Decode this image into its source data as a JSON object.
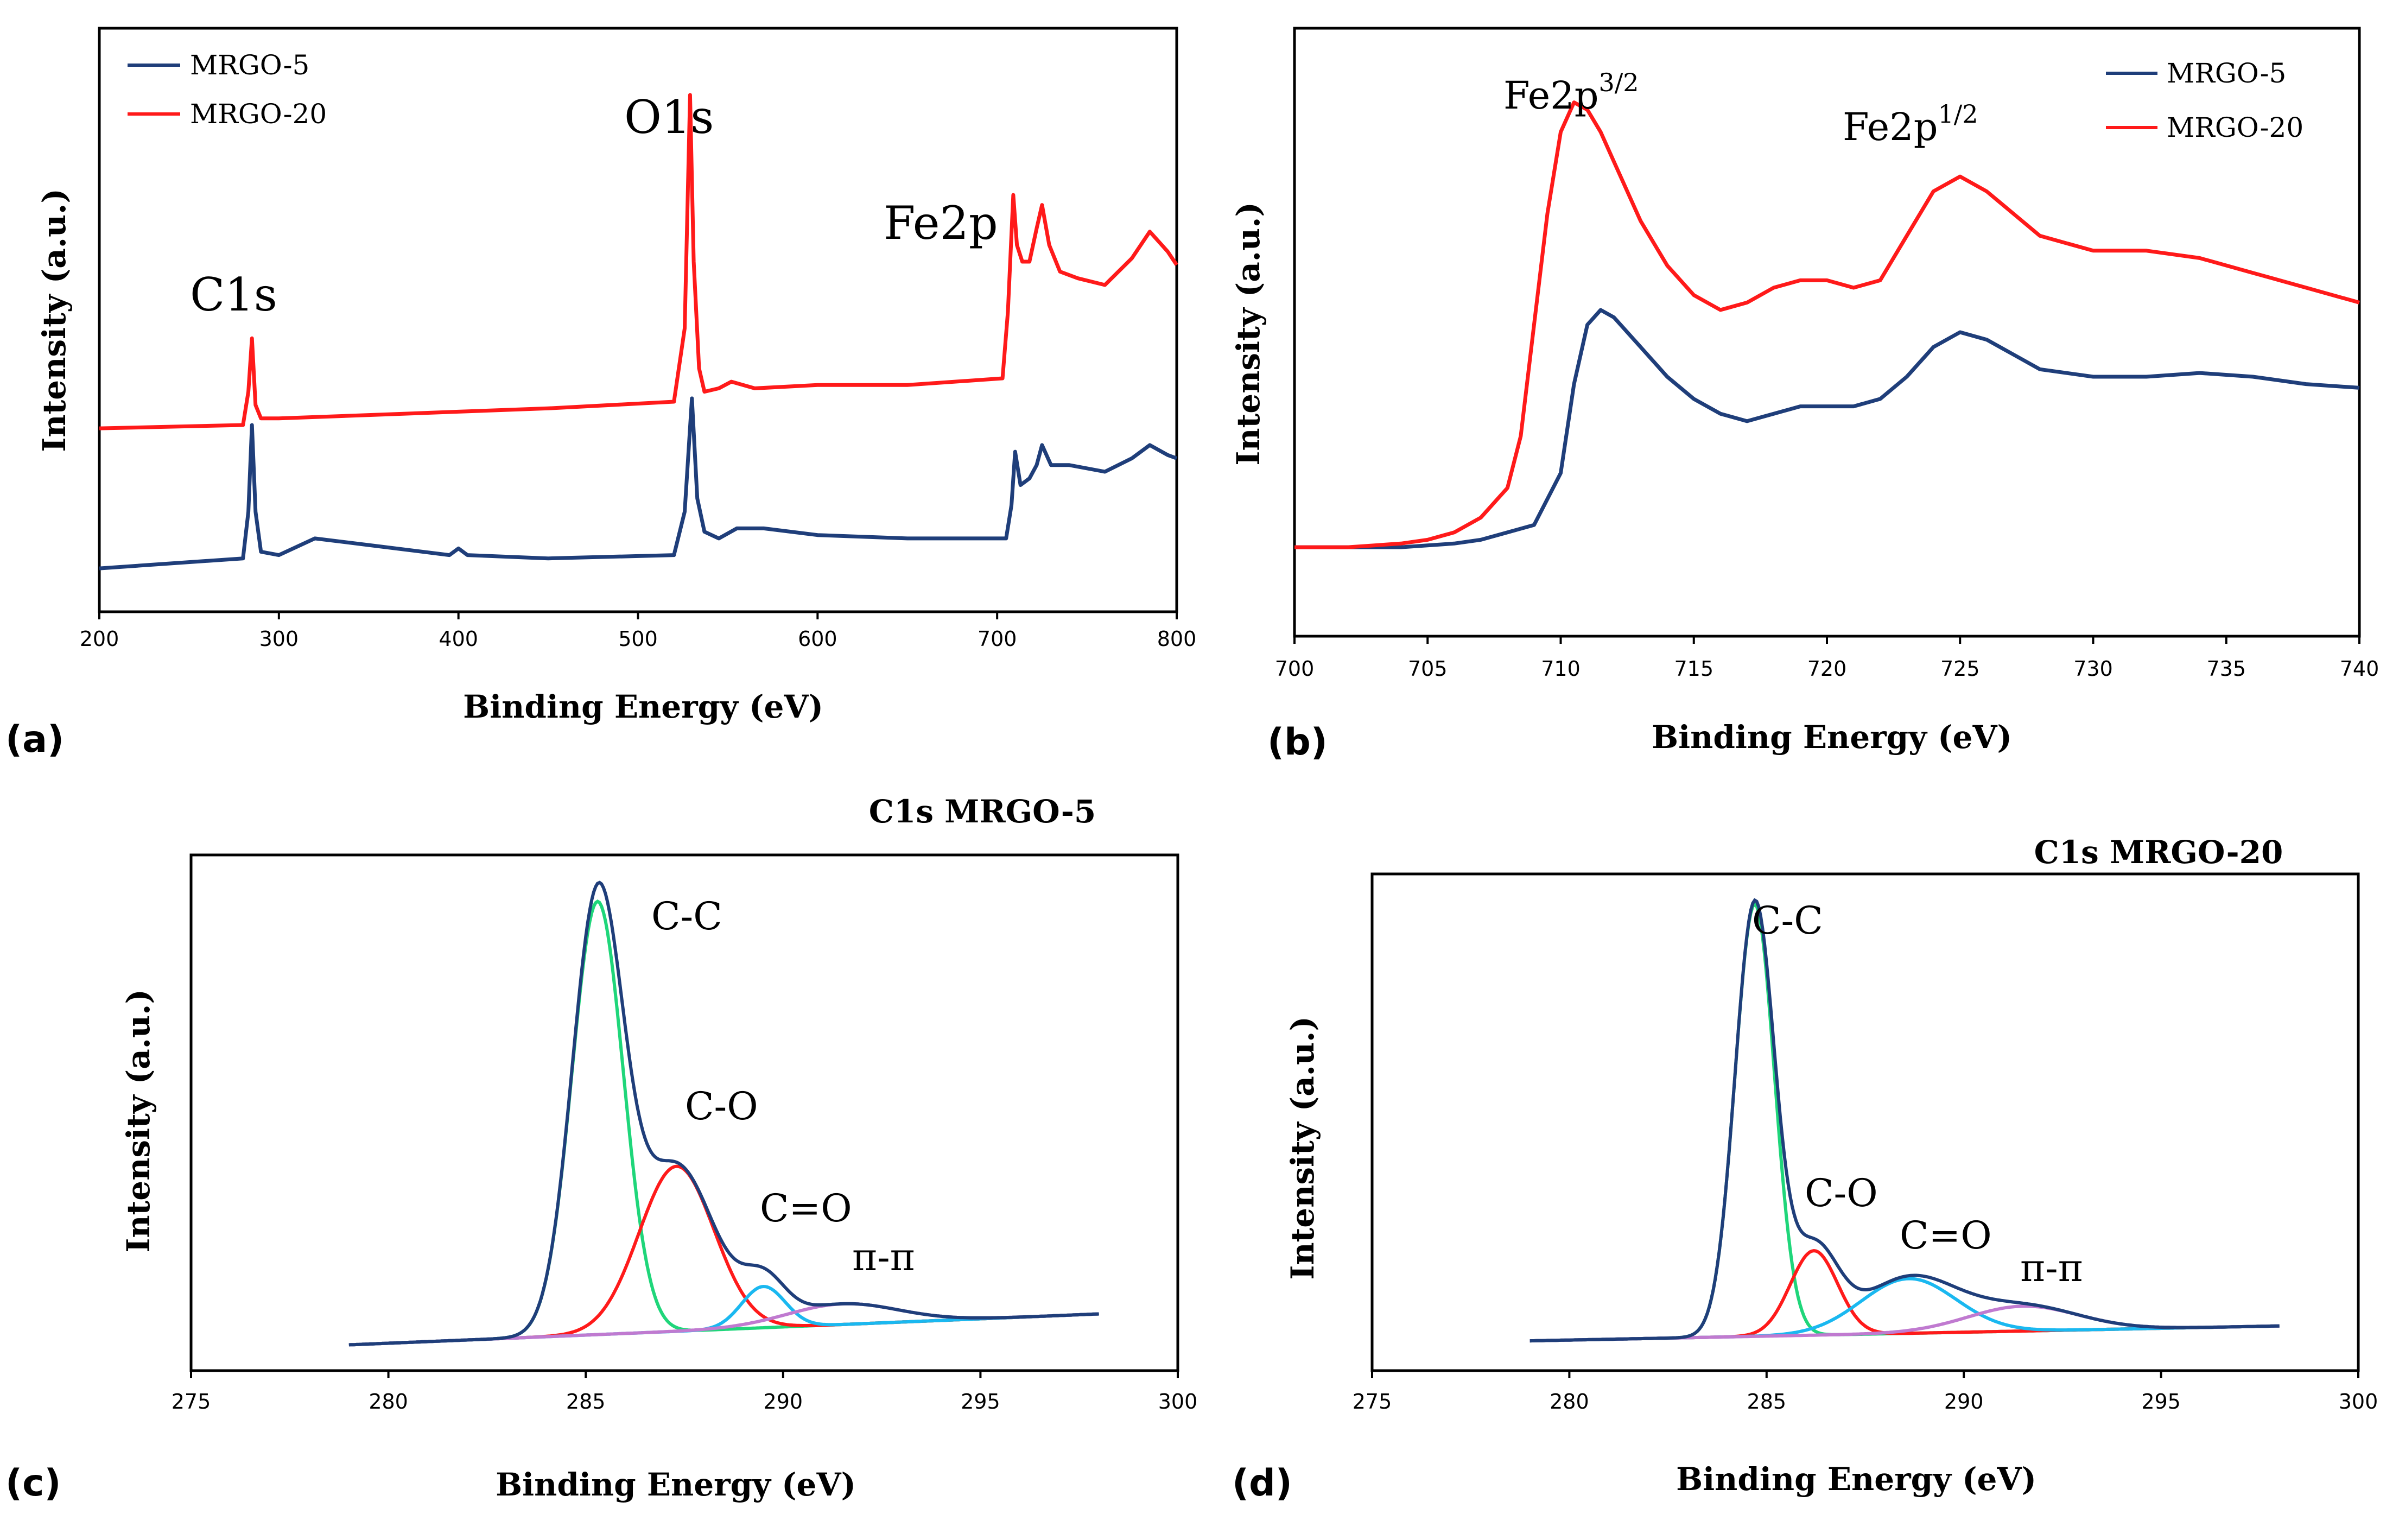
{
  "chart_data": [
    {
      "panel": "(a)",
      "type": "line",
      "title": "",
      "xlabel": "Binding Energy (eV)",
      "ylabel": "Intensity (a.u.)",
      "xlim": [
        200,
        800
      ],
      "xticks": [
        200,
        300,
        400,
        500,
        600,
        700,
        800
      ],
      "legend": {
        "placement": "top-left"
      },
      "annotations": [
        {
          "text": "C1s",
          "x": 275
        },
        {
          "text": "O1s",
          "x": 530
        },
        {
          "text": "Fe2p",
          "x": 685
        }
      ],
      "series": [
        {
          "name": "MRGO-5",
          "color": "#1f3e7a",
          "x": [
            200,
            280,
            283,
            285,
            287,
            290,
            300,
            320,
            350,
            395,
            400,
            405,
            450,
            520,
            526,
            530,
            533,
            537,
            545,
            555,
            570,
            600,
            650,
            705,
            708,
            710,
            713,
            718,
            722,
            725,
            730,
            740,
            760,
            775,
            785,
            795,
            800
          ],
          "y": [
            0.13,
            0.16,
            0.3,
            0.56,
            0.3,
            0.18,
            0.17,
            0.22,
            0.2,
            0.17,
            0.19,
            0.17,
            0.16,
            0.17,
            0.3,
            0.64,
            0.34,
            0.24,
            0.22,
            0.25,
            0.25,
            0.23,
            0.22,
            0.22,
            0.32,
            0.48,
            0.38,
            0.4,
            0.44,
            0.5,
            0.44,
            0.44,
            0.42,
            0.46,
            0.5,
            0.47,
            0.46
          ]
        },
        {
          "name": "MRGO-20",
          "color": "#ff1a1a",
          "x": [
            200,
            280,
            283,
            285,
            287,
            290,
            300,
            350,
            400,
            450,
            520,
            526,
            529,
            531,
            534,
            537,
            545,
            552,
            565,
            600,
            650,
            703,
            706,
            709,
            711,
            714,
            718,
            722,
            725,
            729,
            735,
            745,
            760,
            775,
            785,
            795,
            800
          ],
          "y": [
            0.55,
            0.56,
            0.66,
            0.82,
            0.62,
            0.58,
            0.58,
            0.59,
            0.6,
            0.61,
            0.63,
            0.85,
            1.55,
            1.05,
            0.73,
            0.66,
            0.67,
            0.69,
            0.67,
            0.68,
            0.68,
            0.7,
            0.9,
            1.25,
            1.1,
            1.05,
            1.05,
            1.15,
            1.22,
            1.1,
            1.02,
            1.0,
            0.98,
            1.06,
            1.14,
            1.08,
            1.04
          ]
        }
      ]
    },
    {
      "panel": "(b)",
      "type": "line",
      "title": "",
      "xlabel": "Binding Energy (eV)",
      "ylabel": "Intensity (a.u.)",
      "xlim": [
        700,
        740
      ],
      "xticks": [
        700,
        705,
        710,
        715,
        720,
        725,
        730,
        735,
        740
      ],
      "legend": {
        "placement": "top-right"
      },
      "annotations": [
        {
          "text": "Fe2p",
          "sup": "3/2",
          "x": 710.5
        },
        {
          "text": "Fe2p",
          "sup": "1/2",
          "x": 724.5
        }
      ],
      "series": [
        {
          "name": "MRGO-5",
          "color": "#1f3e7a",
          "x": [
            700,
            702,
            704,
            706,
            707,
            708,
            709,
            710,
            710.5,
            711,
            711.5,
            712,
            713,
            714,
            715,
            716,
            717,
            718,
            719,
            720,
            721,
            722,
            723,
            724,
            725,
            726,
            727,
            728,
            730,
            732,
            734,
            736,
            738,
            740
          ],
          "y": [
            0.3,
            0.3,
            0.3,
            0.305,
            0.31,
            0.32,
            0.33,
            0.4,
            0.52,
            0.6,
            0.62,
            0.61,
            0.57,
            0.53,
            0.5,
            0.48,
            0.47,
            0.48,
            0.49,
            0.49,
            0.49,
            0.5,
            0.53,
            0.57,
            0.59,
            0.58,
            0.56,
            0.54,
            0.53,
            0.53,
            0.535,
            0.53,
            0.52,
            0.515
          ]
        },
        {
          "name": "MRGO-20",
          "color": "#ff1a1a",
          "x": [
            700,
            702,
            704,
            705,
            706,
            707,
            708,
            708.5,
            709,
            709.5,
            710,
            710.5,
            711,
            711.5,
            712,
            713,
            714,
            715,
            716,
            717,
            718,
            719,
            720,
            721,
            722,
            723,
            724,
            725,
            726,
            727,
            728,
            730,
            732,
            734,
            736,
            738,
            740
          ],
          "y": [
            0.3,
            0.3,
            0.305,
            0.31,
            0.32,
            0.34,
            0.38,
            0.45,
            0.6,
            0.75,
            0.86,
            0.9,
            0.89,
            0.86,
            0.82,
            0.74,
            0.68,
            0.64,
            0.62,
            0.63,
            0.65,
            0.66,
            0.66,
            0.65,
            0.66,
            0.72,
            0.78,
            0.8,
            0.78,
            0.75,
            0.72,
            0.7,
            0.7,
            0.69,
            0.67,
            0.65,
            0.63
          ]
        }
      ]
    },
    {
      "panel": "(c)",
      "type": "line",
      "title": "C1s MRGO-5",
      "xlabel": "Binding Energy (eV)",
      "ylabel": "Intensity (a.u.)",
      "xlim": [
        275,
        300
      ],
      "xticks": [
        275,
        280,
        285,
        290,
        295,
        300
      ],
      "annotations": [
        {
          "text": "C-C",
          "x": 286.5
        },
        {
          "text": "C-O",
          "x": 288.0
        },
        {
          "text": "C=O",
          "x": 289.5
        },
        {
          "text": "π-π",
          "x": 291.6
        }
      ],
      "baseline": {
        "x0": 279,
        "y0": 0.05,
        "x1": 298,
        "y1": 0.11
      },
      "components": [
        {
          "label": "C-C",
          "color": "#1fd67a",
          "center": 285.3,
          "amplitude": 0.84,
          "width": 0.65
        },
        {
          "label": "C-O",
          "color": "#ff1a1a",
          "center": 287.3,
          "amplitude": 0.32,
          "width": 0.95
        },
        {
          "label": "C=O",
          "color": "#1ab8f0",
          "center": 289.5,
          "amplitude": 0.08,
          "width": 0.55
        },
        {
          "label": "π-π",
          "color": "#c07ad0",
          "center": 291.5,
          "amplitude": 0.04,
          "width": 1.4
        }
      ],
      "envelope_color": "#1f3e7a",
      "ylim": [
        0,
        1.0
      ]
    },
    {
      "panel": "(d)",
      "type": "line",
      "title": "C1s MRGO-20",
      "xlabel": "Binding Energy (eV)",
      "ylabel": "Intensity (a.u.)",
      "xlim": [
        275,
        300
      ],
      "xticks": [
        275,
        280,
        285,
        290,
        295,
        300
      ],
      "annotations": [
        {
          "text": "C-C",
          "x": 285.0
        },
        {
          "text": "C-O",
          "x": 286.5
        },
        {
          "text": "C=O",
          "x": 289.0
        },
        {
          "text": "π-π",
          "x": 292.2
        }
      ],
      "baseline": {
        "x0": 279,
        "y0": 0.06,
        "x1": 298,
        "y1": 0.09
      },
      "components": [
        {
          "label": "C-C",
          "color": "#1fd67a",
          "center": 284.7,
          "amplitude": 0.87,
          "width": 0.5
        },
        {
          "label": "C-O",
          "color": "#ff1a1a",
          "center": 286.2,
          "amplitude": 0.17,
          "width": 0.6
        },
        {
          "label": "C=O",
          "color": "#1ab8f0",
          "center": 288.6,
          "amplitude": 0.11,
          "width": 1.2
        },
        {
          "label": "π-π",
          "color": "#c07ad0",
          "center": 291.5,
          "amplitude": 0.05,
          "width": 1.4
        }
      ],
      "envelope_color": "#1f3e7a",
      "ylim": [
        0,
        1.0
      ]
    }
  ]
}
